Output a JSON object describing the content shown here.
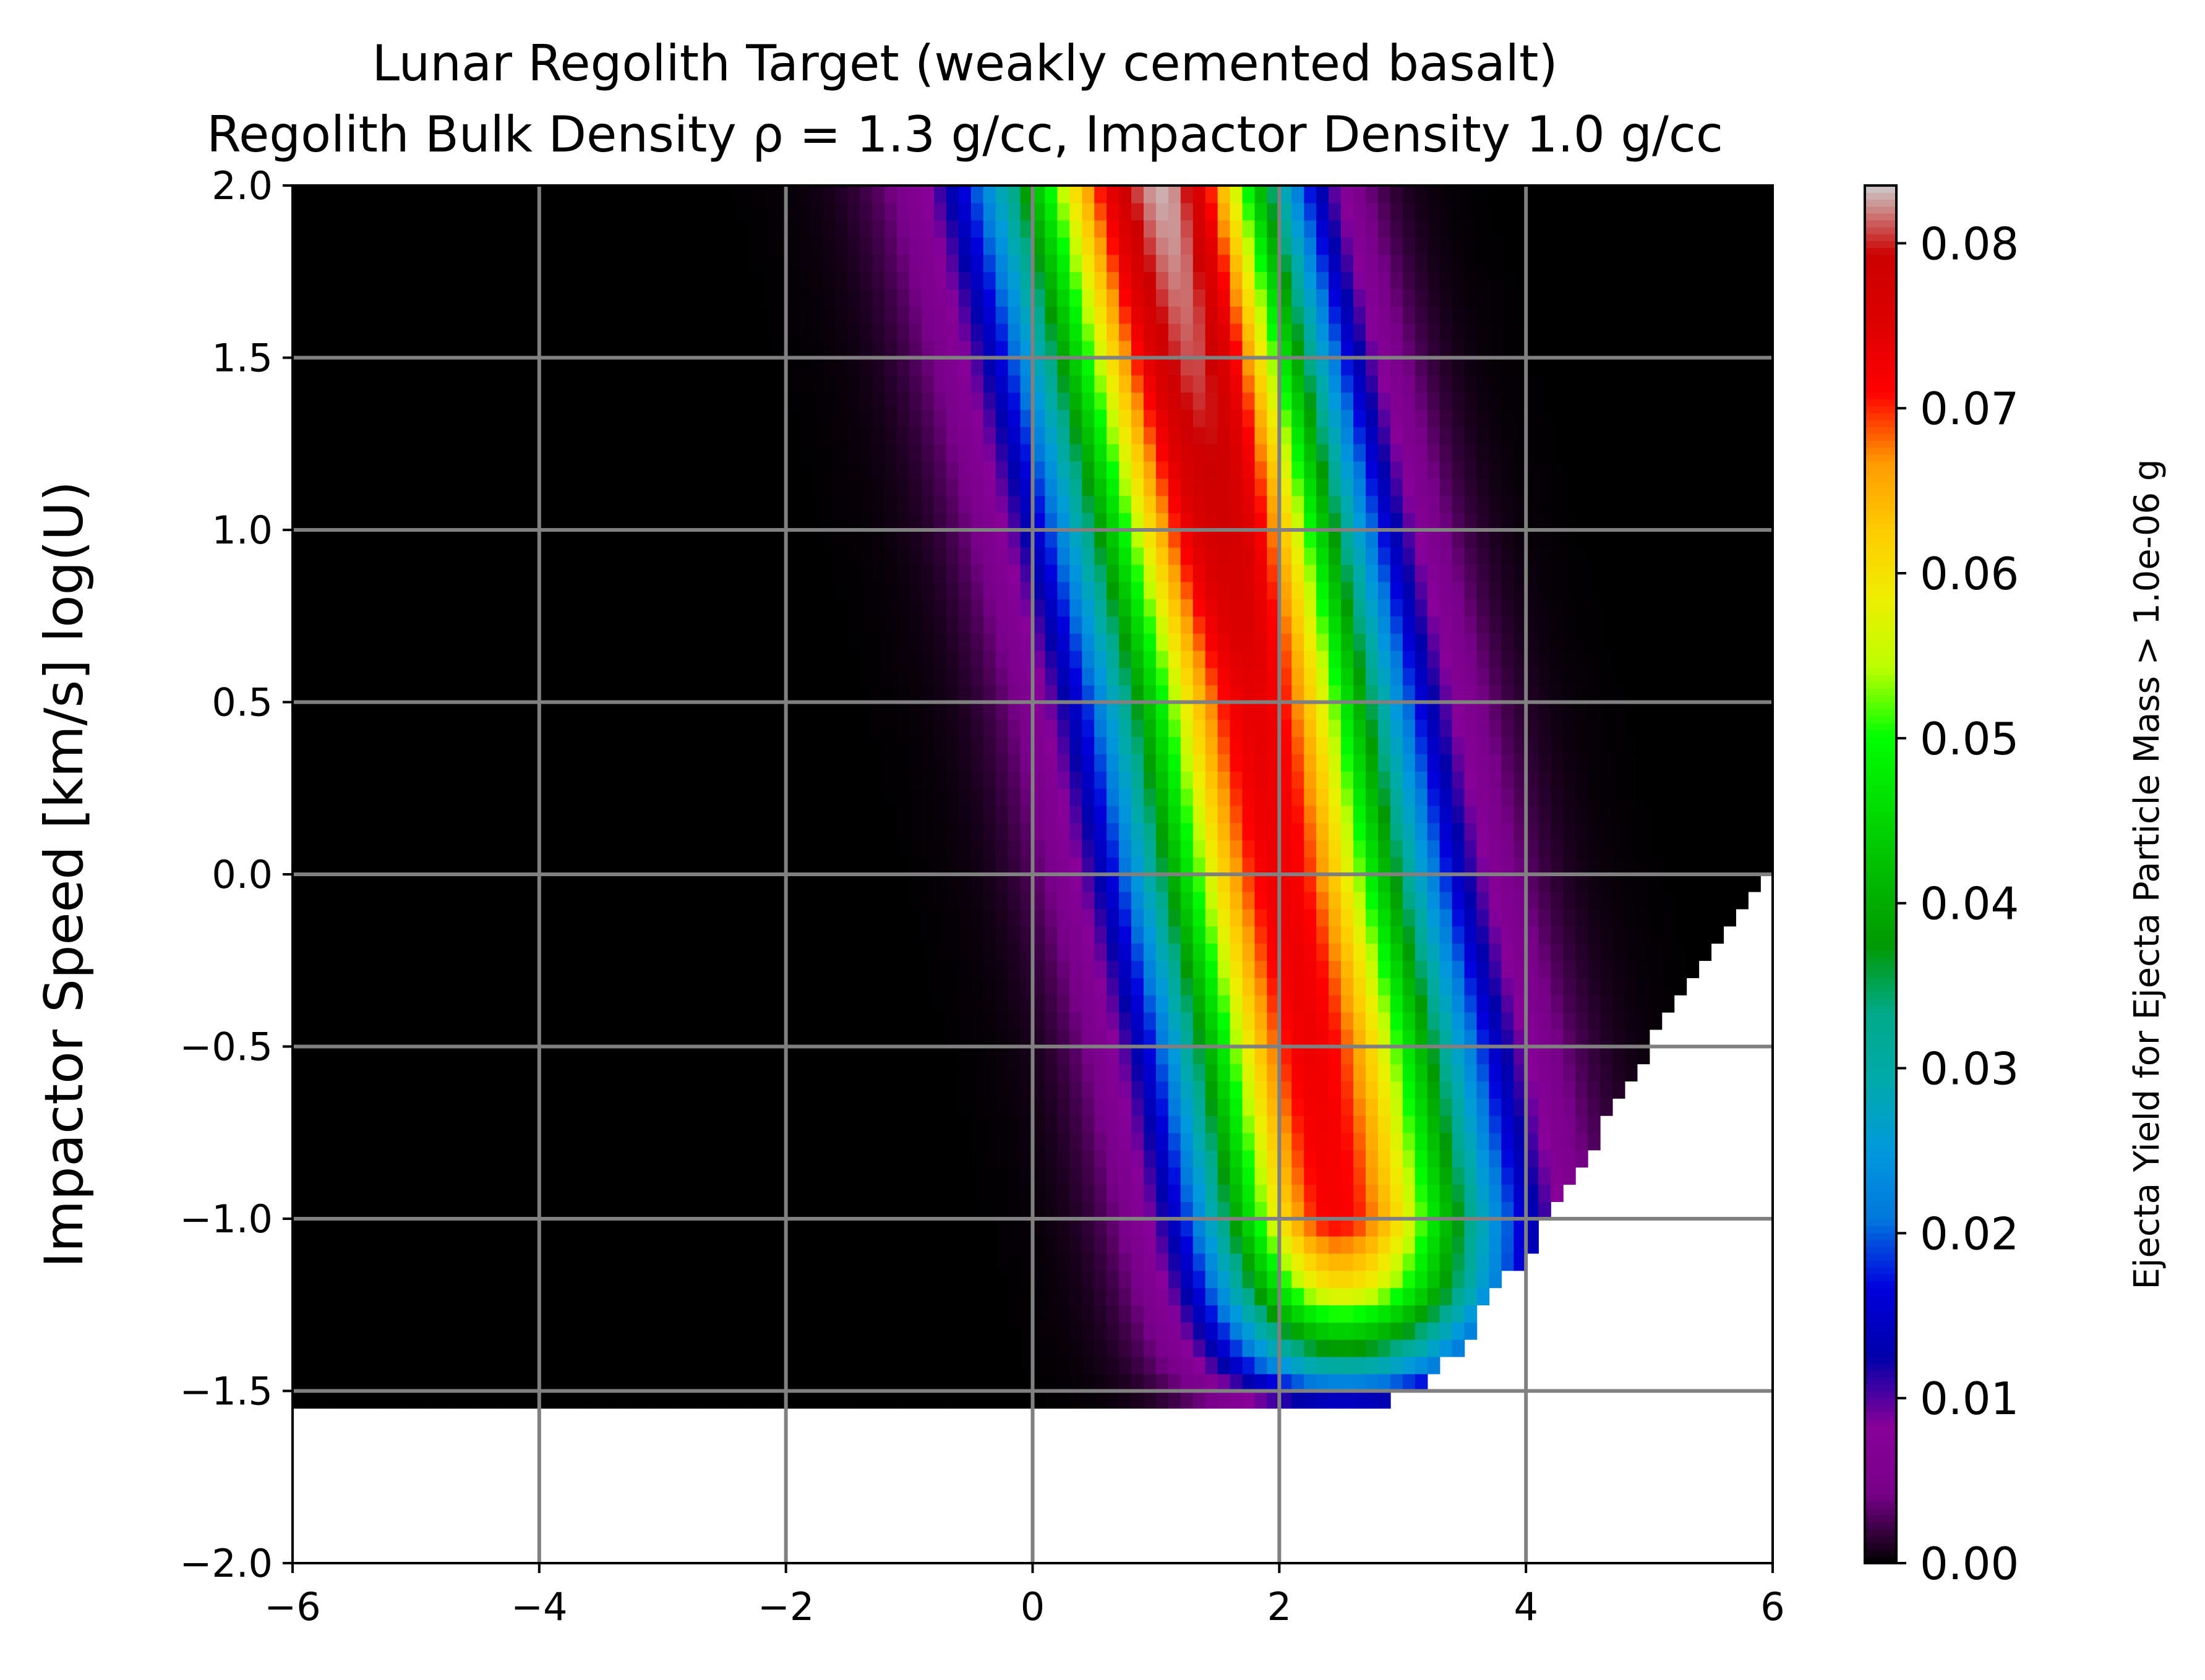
{
  "chart_data": {
    "type": "heatmap",
    "title_line1": "Lunar Regolith Target (weakly cemented basalt)",
    "title_line2": "Regolith Bulk Density ρ = 1.3 g/cc, Impactor Density 1.0 g/cc",
    "xlabel": "",
    "ylabel": "Impactor Speed [km/s] log(U)",
    "xlim": [
      -6,
      6
    ],
    "ylim": [
      -2,
      2
    ],
    "x_ticks": [
      "−6",
      "−4",
      "−2",
      "0",
      "2",
      "4",
      "6"
    ],
    "x_tick_values": [
      -6,
      -4,
      -2,
      0,
      2,
      4,
      6
    ],
    "y_ticks": [
      "−2.0",
      "−1.5",
      "−1.0",
      "−0.5",
      "0.0",
      "0.5",
      "1.0",
      "1.5",
      "2.0"
    ],
    "y_tick_values": [
      -2.0,
      -1.5,
      -1.0,
      -0.5,
      0.0,
      0.5,
      1.0,
      1.5,
      2.0
    ],
    "grid": true,
    "grid_color": "#808080",
    "colormap": "nipy_spectral",
    "colorbar": {
      "label": "Ejecta Yield for Ejecta Particle Mass > 1.0e-06 g",
      "range": [
        0.0,
        0.0835
      ],
      "ticks": [
        "0.00",
        "0.01",
        "0.02",
        "0.03",
        "0.04",
        "0.05",
        "0.06",
        "0.07",
        "0.08"
      ],
      "tick_values": [
        0.0,
        0.01,
        0.02,
        0.03,
        0.04,
        0.05,
        0.06,
        0.07,
        0.08
      ]
    },
    "data_region": {
      "y_min": -1.55,
      "lower_right_boundary": [
        [
          -1.55,
          2.6
        ],
        [
          -1.5,
          3.2
        ],
        [
          -1.0,
          4.2
        ],
        [
          -0.5,
          5.0
        ],
        [
          0.0,
          5.9
        ],
        [
          0.0,
          6.0
        ]
      ]
    },
    "ridge": {
      "description_points": [
        {
          "y": 2.0,
          "x_center": 1.05,
          "peak": 0.083
        },
        {
          "y": 1.5,
          "x_center": 1.3,
          "peak": 0.081
        },
        {
          "y": 1.0,
          "x_center": 1.55,
          "peak": 0.078
        },
        {
          "y": 0.5,
          "x_center": 1.8,
          "peak": 0.074
        },
        {
          "y": 0.0,
          "x_center": 2.0,
          "peak": 0.073
        },
        {
          "y": -0.5,
          "x_center": 2.25,
          "peak": 0.073
        },
        {
          "y": -1.0,
          "x_center": 2.45,
          "peak": 0.072
        },
        {
          "y": -1.2,
          "x_center": 2.5,
          "peak": 0.06
        },
        {
          "y": -1.4,
          "x_center": 2.5,
          "peak": 0.035
        },
        {
          "y": -1.55,
          "x_center": 2.5,
          "peak": 0.01
        }
      ]
    },
    "colors": {
      "background": "#ffffff",
      "axes": "#000000",
      "grid": "#808080"
    }
  }
}
